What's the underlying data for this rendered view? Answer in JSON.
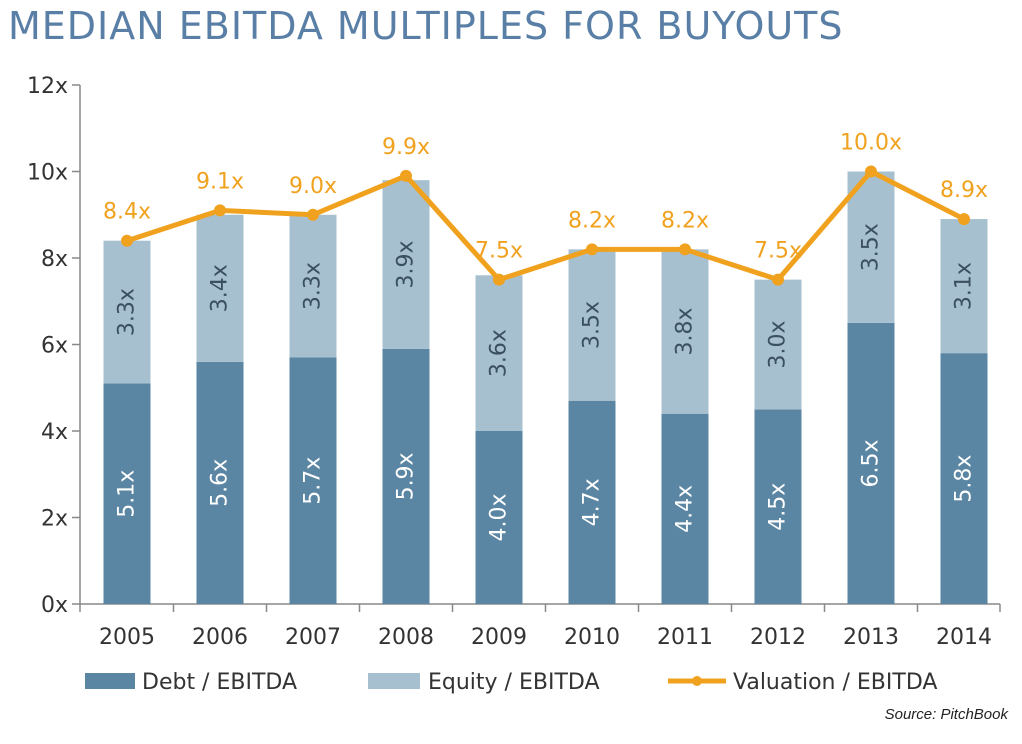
{
  "title": "MEDIAN EBITDA MULTIPLES FOR BUYOUTS",
  "source": "Source: PitchBook",
  "colors": {
    "debt": "#5b86a3",
    "equity": "#a7c0d0",
    "valuation": "#f0a21f",
    "axis": "#888888",
    "title": "#5a7fa6"
  },
  "chart_data": {
    "type": "bar",
    "stacked": true,
    "title": "MEDIAN EBITDA MULTIPLES FOR BUYOUTS",
    "categories": [
      "2005",
      "2006",
      "2007",
      "2008",
      "2009",
      "2010",
      "2011",
      "2012",
      "2013",
      "2014"
    ],
    "y_ticks": [
      "0x",
      "2x",
      "4x",
      "6x",
      "8x",
      "10x",
      "12x"
    ],
    "ylim": [
      0,
      12
    ],
    "grid": false,
    "legend_position": "bottom",
    "series": [
      {
        "name": "Debt / EBITDA",
        "kind": "bar",
        "values": [
          5.1,
          5.6,
          5.7,
          5.9,
          4.0,
          4.7,
          4.4,
          4.5,
          6.5,
          5.8
        ],
        "labels": [
          "5.1x",
          "5.6x",
          "5.7x",
          "5.9x",
          "4.0x",
          "4.7x",
          "4.4x",
          "4.5x",
          "6.5x",
          "5.8x"
        ]
      },
      {
        "name": "Equity / EBITDA",
        "kind": "bar",
        "values": [
          3.3,
          3.4,
          3.3,
          3.9,
          3.6,
          3.5,
          3.8,
          3.0,
          3.5,
          3.1
        ],
        "labels": [
          "3.3x",
          "3.4x",
          "3.3x",
          "3.9x",
          "3.6x",
          "3.5x",
          "3.8x",
          "3.0x",
          "3.5x",
          "3.1x"
        ]
      },
      {
        "name": "Valuation / EBITDA",
        "kind": "line",
        "values": [
          8.4,
          9.1,
          9.0,
          9.9,
          7.5,
          8.2,
          8.2,
          7.5,
          10.0,
          8.9
        ],
        "labels": [
          "8.4x",
          "9.1x",
          "9.0x",
          "9.9x",
          "7.5x",
          "8.2x",
          "8.2x",
          "7.5x",
          "10.0x",
          "8.9x"
        ]
      }
    ]
  }
}
